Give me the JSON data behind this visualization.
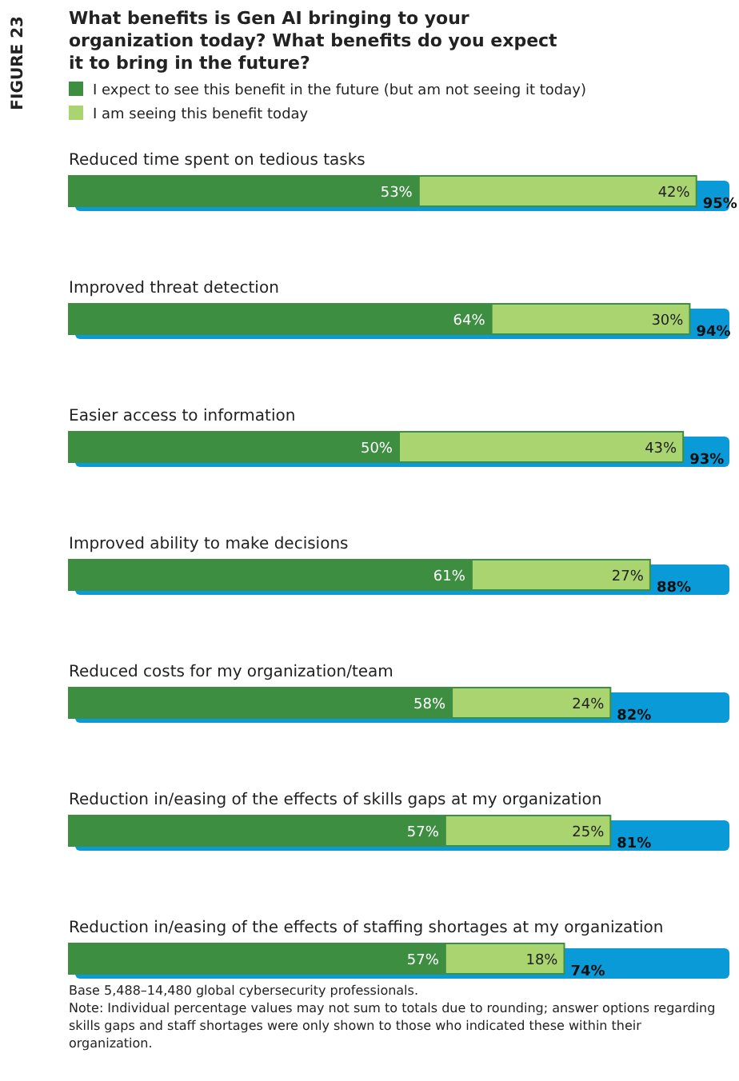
{
  "chart_data": {
    "type": "bar",
    "orientation": "horizontal",
    "stacked": true,
    "title": "What benefits is Gen AI bringing to your organization today? What benefits do you expect it to bring in the future?",
    "categories": [
      "Reduced time spent on tedious tasks",
      "Improved threat detection",
      "Easier access to information",
      "Improved ability to make decisions",
      "Reduced costs for my organization/team",
      "Reduction in/easing of the effects of skills gaps at my organization",
      "Reduction in/easing of the effects of staffing shortages at my organization"
    ],
    "series": [
      {
        "name": "I expect to see this benefit in the future (but am not seeing it today)",
        "color": "#3e8e41",
        "values": [
          53,
          64,
          50,
          61,
          58,
          57,
          57
        ],
        "value_labels": [
          "53%",
          "64%",
          "50%",
          "61%",
          "58%",
          "57%",
          "57%"
        ]
      },
      {
        "name": "I am seeing this benefit today",
        "color": "#a9d46f",
        "values": [
          42,
          30,
          43,
          27,
          24,
          25,
          18
        ],
        "value_labels": [
          "42%",
          "30%",
          "43%",
          "27%",
          "24%",
          "25%",
          "18%"
        ]
      }
    ],
    "totals": [
      "95%",
      "94%",
      "93%",
      "88%",
      "82%",
      "81%",
      "74%"
    ],
    "xlim": [
      0,
      100
    ],
    "tick_labels": false,
    "legend": "top left",
    "annotations": [
      "FIGURE 23",
      "Base 5,488–14,480 global cybersecurity professionals.",
      "Note: Individual percentage values may not sum to totals due to rounding; answer options regarding skills gaps and staff shortages were only shown to those who indicated these within their organization."
    ]
  }
}
